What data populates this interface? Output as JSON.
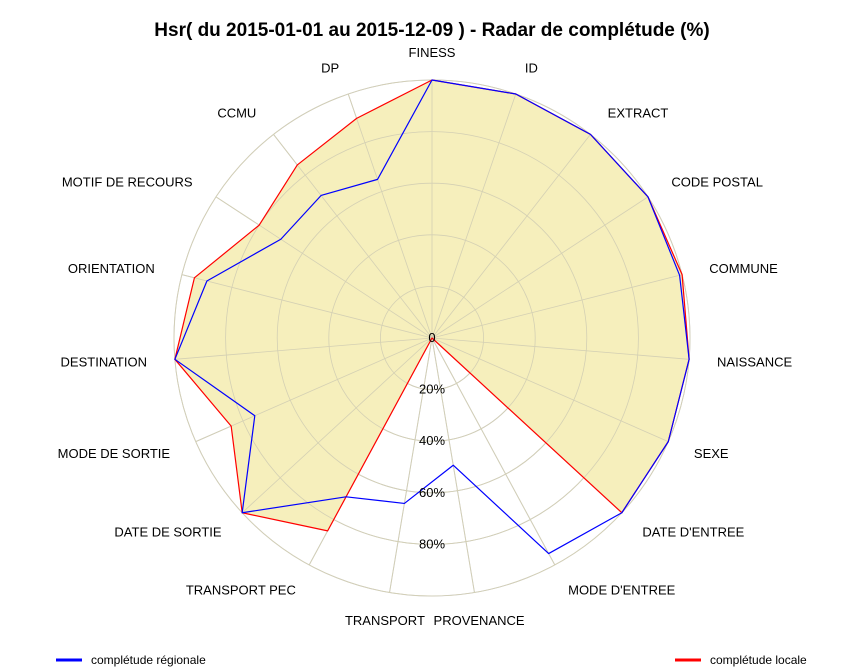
{
  "chart_data": {
    "type": "radar",
    "title": "Hsr( du 2015-01-01 au 2015-12-09 ) - Radar de complétude (%)",
    "axes": [
      "FINESS",
      "ID",
      "EXTRACT",
      "CODE POSTAL",
      "COMMUNE",
      "NAISSANCE",
      "SEXE",
      "DATE D'ENTREE",
      "MODE D'ENTREE",
      "PROVENANCE",
      "TRANSPORT",
      "TRANSPORT PEC",
      "DATE DE SORTIE",
      "MODE DE SORTIE",
      "DESTINATION",
      "ORIENTATION",
      "MOTIF DE RECOURS",
      "CCMU",
      "DP"
    ],
    "rlim": [
      0,
      100
    ],
    "ring_labels": [
      "0",
      "20%",
      "40%",
      "60%",
      "80%"
    ],
    "grid": true,
    "series": [
      {
        "name": "complétude régionale",
        "color": "#0000ff",
        "values": [
          100,
          100,
          100,
          100,
          99,
          100,
          100,
          100,
          95,
          50,
          65,
          70,
          100,
          75,
          100,
          90,
          70,
          70,
          65
        ]
      },
      {
        "name": "complétude locale",
        "color": "#ff0000",
        "fill": "#f5eeb8",
        "values": [
          100,
          100,
          100,
          100,
          100,
          100,
          100,
          100,
          0,
          0,
          0,
          85,
          100,
          85,
          100,
          95,
          80,
          85,
          90
        ]
      }
    ],
    "legend_position": "bottom"
  }
}
